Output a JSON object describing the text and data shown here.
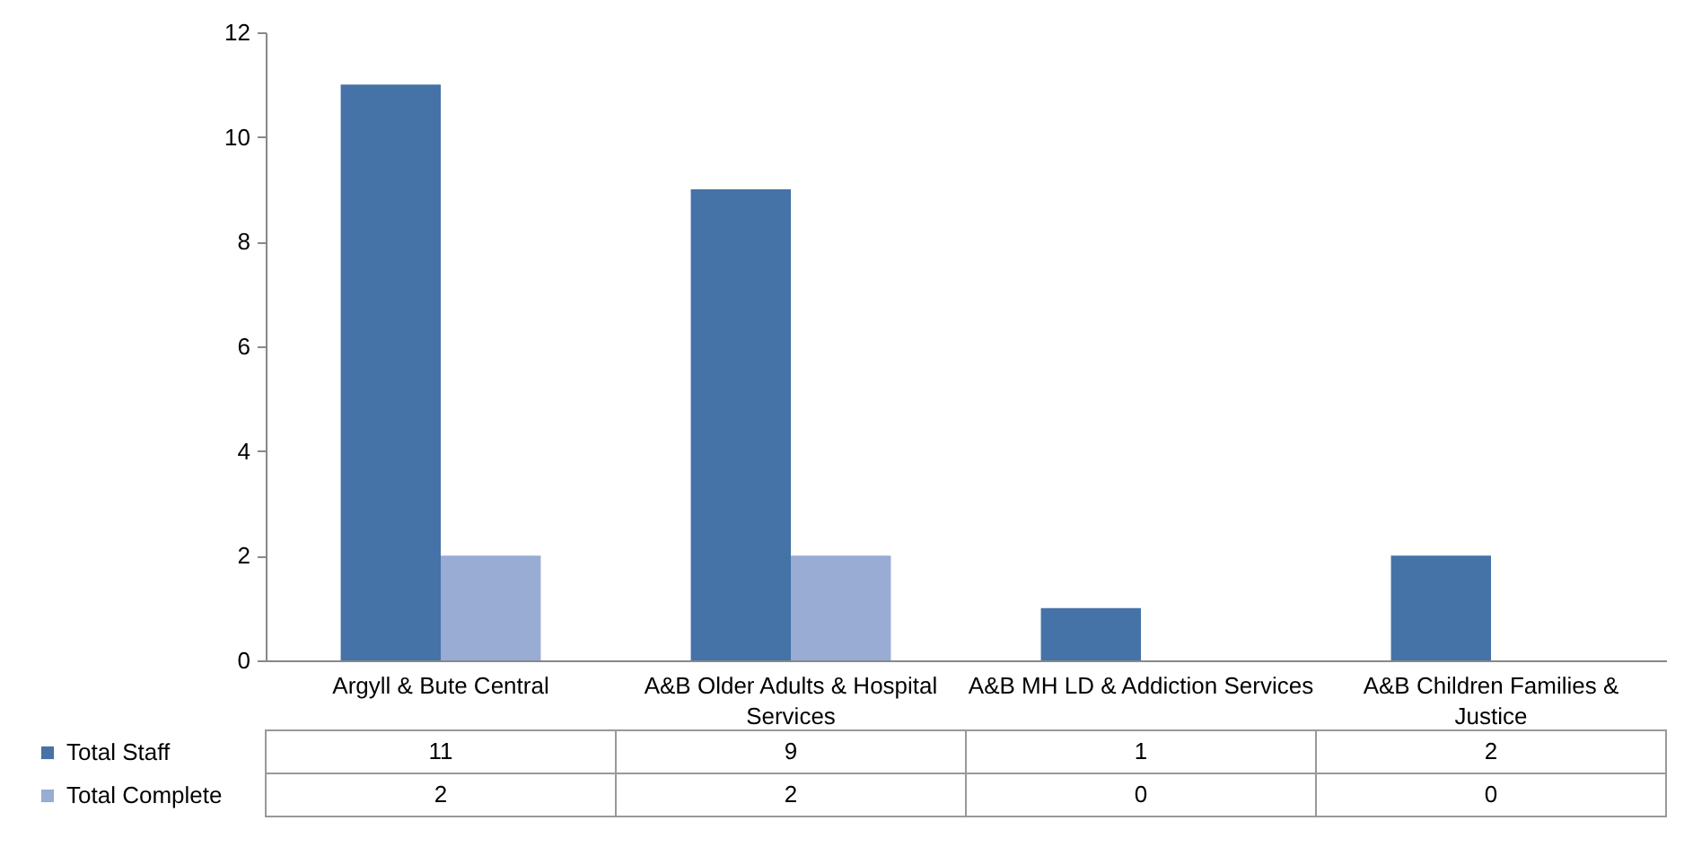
{
  "chart_data": {
    "type": "bar",
    "categories": [
      "Argyll & Bute Central",
      "A&B Older Adults & Hospital Services",
      "A&B MH LD & Addiction Services",
      "A&B Children Families & Justice"
    ],
    "series": [
      {
        "name": "Total Staff",
        "color": "#4572a7",
        "values": [
          11,
          9,
          1,
          2
        ]
      },
      {
        "name": "Total Complete",
        "color": "#99acd4",
        "values": [
          2,
          2,
          0,
          0
        ]
      }
    ],
    "ylim": [
      0,
      12
    ],
    "yticks": [
      0,
      2,
      4,
      6,
      8,
      10,
      12
    ],
    "grid": false,
    "legend": "bottom left",
    "data_labels": true
  }
}
